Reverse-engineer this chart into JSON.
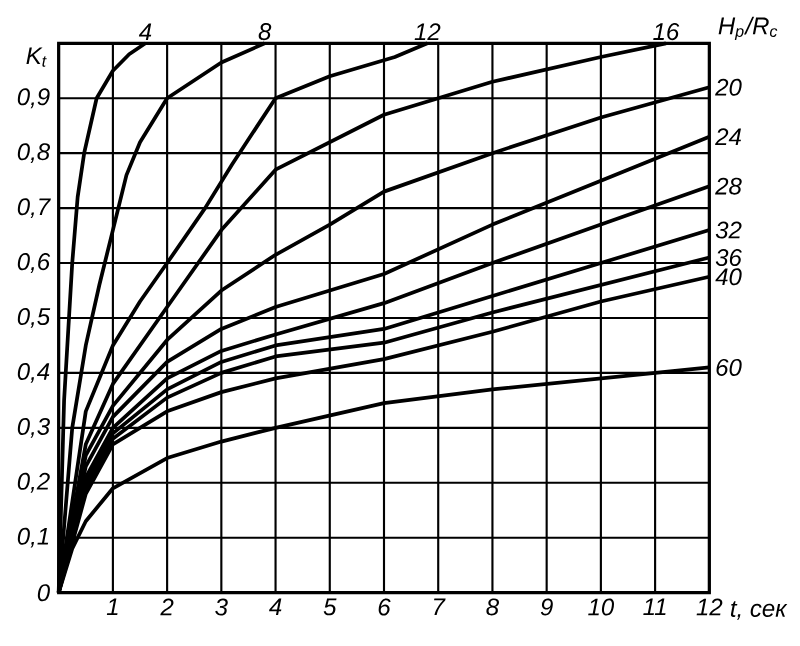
{
  "chart_data": {
    "type": "line",
    "xlabel": "t, сек",
    "ylabel": "K$_{t}$",
    "legend_title": "H$_{p}$/R$_{c}$",
    "xlim": [
      0,
      12
    ],
    "ylim": [
      0,
      1
    ],
    "xticks": [
      {
        "value": 0,
        "label": null
      },
      1,
      2,
      3,
      4,
      5,
      6,
      7,
      8,
      9,
      10,
      11,
      12
    ],
    "yticks": [
      0,
      {
        "value": 0.1,
        "label": "0,1"
      },
      {
        "value": 0.2,
        "label": "0,2"
      },
      {
        "value": 0.3,
        "label": "0,3"
      },
      {
        "value": 0.4,
        "label": "0,4"
      },
      {
        "value": 0.5,
        "label": "0,5"
      },
      {
        "value": 0.6,
        "label": "0,6"
      },
      {
        "value": 0.7,
        "label": "0,7"
      },
      {
        "value": 0.8,
        "label": "0,8"
      },
      {
        "value": 0.9,
        "label": "0,9"
      }
    ],
    "grid": true,
    "marker": "none",
    "line_style": "solid",
    "series": [
      {
        "name": "4",
        "color": "#000000",
        "x": [
          0,
          0.1,
          0.25,
          0.35,
          0.47,
          0.7,
          1,
          1.3,
          1.6
        ],
        "values": [
          0,
          0.35,
          0.6,
          0.72,
          0.8,
          0.9,
          0.95,
          0.98,
          1.0
        ]
      },
      {
        "name": "8",
        "color": "#000000",
        "x": [
          0,
          0.25,
          0.5,
          0.75,
          1,
          1.25,
          1.5,
          2,
          3,
          3.8
        ],
        "values": [
          0,
          0.3,
          0.45,
          0.56,
          0.66,
          0.76,
          0.82,
          0.9,
          0.965,
          1.0
        ]
      },
      {
        "name": "12",
        "color": "#000000",
        "x": [
          0,
          0.5,
          1,
          1.5,
          2,
          2.7,
          3.2,
          4,
          5,
          6.2,
          6.8
        ],
        "values": [
          0,
          0.33,
          0.45,
          0.53,
          0.6,
          0.7,
          0.78,
          0.9,
          0.94,
          0.975,
          1.0
        ]
      },
      {
        "name": "16",
        "color": "#000000",
        "x": [
          0,
          0.5,
          1,
          2,
          3,
          4,
          6,
          8,
          10,
          11.2
        ],
        "values": [
          0,
          0.27,
          0.38,
          0.52,
          0.66,
          0.77,
          0.87,
          0.93,
          0.975,
          1.0
        ]
      },
      {
        "name": "20",
        "color": "#000000",
        "x": [
          0,
          0.5,
          1,
          2,
          3,
          4,
          5,
          6,
          8,
          10,
          12
        ],
        "values": [
          0,
          0.25,
          0.34,
          0.46,
          0.55,
          0.615,
          0.67,
          0.73,
          0.8,
          0.865,
          0.92
        ]
      },
      {
        "name": "24",
        "color": "#000000",
        "x": [
          0,
          0.5,
          1,
          2,
          3,
          4,
          6,
          8,
          10,
          12
        ],
        "values": [
          0,
          0.23,
          0.32,
          0.42,
          0.48,
          0.52,
          0.58,
          0.67,
          0.75,
          0.83
        ]
      },
      {
        "name": "28",
        "color": "#000000",
        "x": [
          0,
          0.5,
          1,
          2,
          3,
          4,
          6,
          8,
          10,
          12
        ],
        "values": [
          0,
          0.21,
          0.3,
          0.39,
          0.44,
          0.47,
          0.527,
          0.6,
          0.67,
          0.74
        ]
      },
      {
        "name": "32",
        "color": "#000000",
        "x": [
          0,
          0.5,
          1,
          2,
          3,
          4,
          6,
          8,
          10,
          12
        ],
        "values": [
          0,
          0.2,
          0.29,
          0.37,
          0.42,
          0.45,
          0.48,
          0.54,
          0.6,
          0.66
        ]
      },
      {
        "name": "36",
        "color": "#000000",
        "x": [
          0,
          0.5,
          1,
          2,
          3,
          4,
          6,
          8,
          10,
          12
        ],
        "values": [
          0,
          0.19,
          0.28,
          0.355,
          0.4,
          0.43,
          0.455,
          0.51,
          0.56,
          0.61
        ]
      },
      {
        "name": "40",
        "color": "#000000",
        "x": [
          0,
          0.5,
          1,
          2,
          3,
          4,
          6,
          8,
          10,
          12
        ],
        "values": [
          0,
          0.18,
          0.27,
          0.33,
          0.365,
          0.39,
          0.425,
          0.475,
          0.53,
          0.575
        ]
      },
      {
        "name": "60",
        "color": "#000000",
        "x": [
          0,
          0.25,
          0.5,
          1,
          2,
          3,
          4,
          6,
          8,
          10,
          12
        ],
        "values": [
          0,
          0.08,
          0.13,
          0.19,
          0.245,
          0.275,
          0.3,
          0.345,
          0.37,
          0.39,
          0.41
        ]
      }
    ]
  }
}
